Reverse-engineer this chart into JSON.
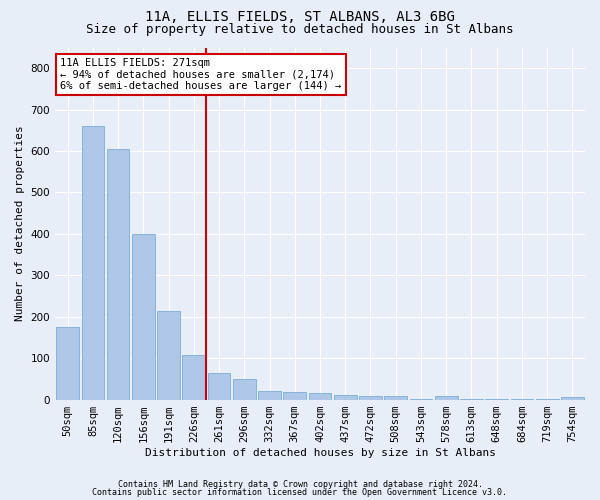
{
  "title": "11A, ELLIS FIELDS, ST ALBANS, AL3 6BG",
  "subtitle": "Size of property relative to detached houses in St Albans",
  "xlabel": "Distribution of detached houses by size in St Albans",
  "ylabel": "Number of detached properties",
  "footnote1": "Contains HM Land Registry data © Crown copyright and database right 2024.",
  "footnote2": "Contains public sector information licensed under the Open Government Licence v3.0.",
  "bar_labels": [
    "50sqm",
    "85sqm",
    "120sqm",
    "156sqm",
    "191sqm",
    "226sqm",
    "261sqm",
    "296sqm",
    "332sqm",
    "367sqm",
    "402sqm",
    "437sqm",
    "472sqm",
    "508sqm",
    "543sqm",
    "578sqm",
    "613sqm",
    "648sqm",
    "684sqm",
    "719sqm",
    "754sqm"
  ],
  "bar_values": [
    175,
    660,
    605,
    400,
    215,
    108,
    65,
    50,
    20,
    18,
    15,
    12,
    8,
    8,
    2,
    8,
    1,
    1,
    1,
    1,
    6
  ],
  "bar_color": "#aec6e8",
  "bar_edge_color": "#7aadd4",
  "background_color": "#e8eef8",
  "fig_background_color": "#e8eef8",
  "grid_color": "#ffffff",
  "annotation_line1": "11A ELLIS FIELDS: 271sqm",
  "annotation_line2": "← 94% of detached houses are smaller (2,174)",
  "annotation_line3": "6% of semi-detached houses are larger (144) →",
  "annotation_box_color": "#ffffff",
  "annotation_box_edge_color": "#cc0000",
  "vline_color": "#cc0000",
  "vline_x_index": 5.5,
  "ylim": [
    0,
    850
  ],
  "yticks": [
    0,
    100,
    200,
    300,
    400,
    500,
    600,
    700,
    800
  ],
  "title_fontsize": 10,
  "subtitle_fontsize": 9,
  "ylabel_fontsize": 8,
  "xlabel_fontsize": 8,
  "tick_fontsize": 7.5,
  "annotation_fontsize": 7.5,
  "footnote_fontsize": 6
}
